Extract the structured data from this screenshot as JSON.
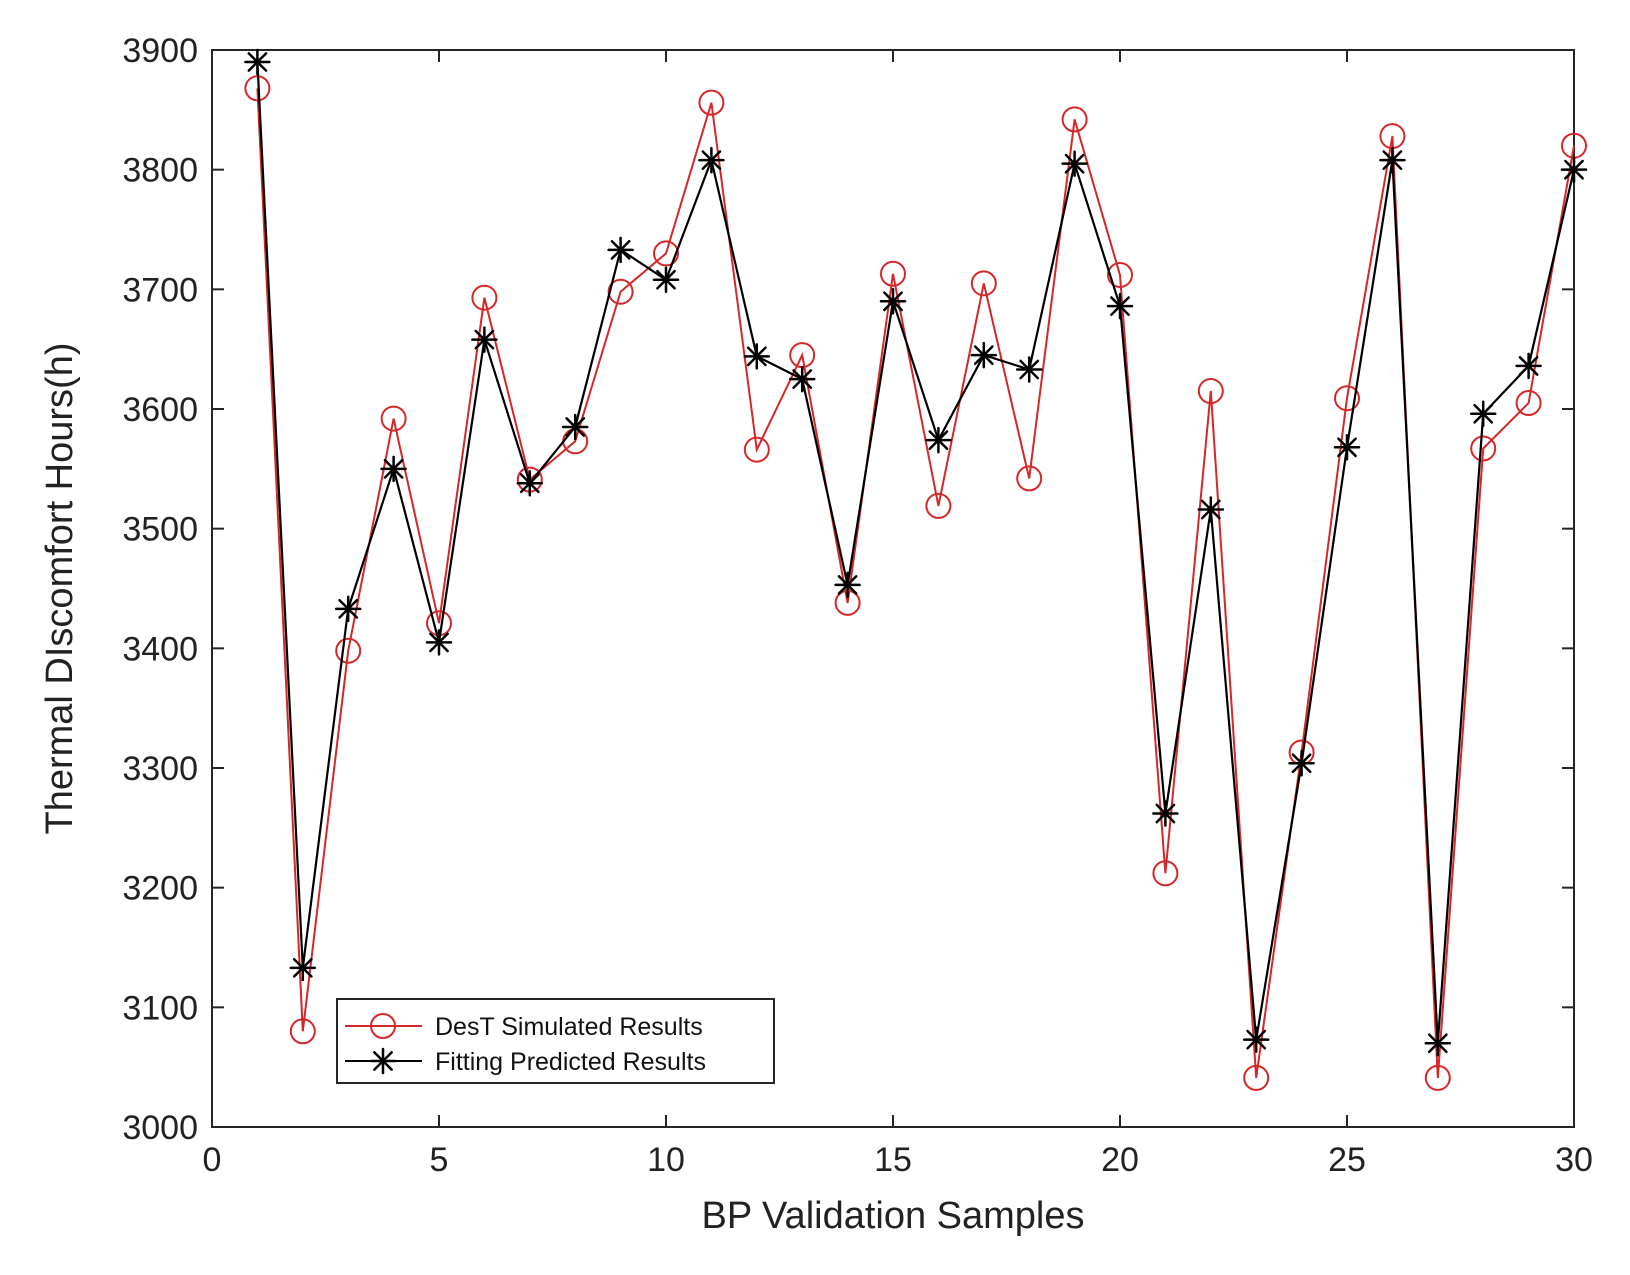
{
  "chart_data": {
    "type": "line",
    "title": "",
    "xlabel": "BP Validation Samples",
    "ylabel": "Thermal DIscomfort Hours(h)",
    "xlim": [
      0,
      30
    ],
    "ylim": [
      3000,
      3900
    ],
    "xticks": [
      0,
      5,
      10,
      15,
      20,
      25,
      30
    ],
    "yticks": [
      3000,
      3100,
      3200,
      3300,
      3400,
      3500,
      3600,
      3700,
      3800,
      3900
    ],
    "grid": false,
    "legend_position": "bottom-left",
    "x": [
      1,
      2,
      3,
      4,
      5,
      6,
      7,
      8,
      9,
      10,
      11,
      12,
      13,
      14,
      15,
      16,
      17,
      18,
      19,
      20,
      21,
      22,
      23,
      24,
      25,
      26,
      27,
      28,
      29,
      30
    ],
    "series": [
      {
        "name": "DesT Simulated Results",
        "color": "#d62728",
        "marker": "circle",
        "values": [
          3868,
          3080,
          3398,
          3592,
          3421,
          3693,
          3541,
          3573,
          3698,
          3730,
          3856,
          3566,
          3645,
          3438,
          3713,
          3519,
          3705,
          3542,
          3842,
          3712,
          3212,
          3615,
          3041,
          3313,
          3609,
          3828,
          3041,
          3567,
          3605,
          3820
        ]
      },
      {
        "name": "Fitting Predicted Results",
        "color": "#000000",
        "marker": "asterisk",
        "values": [
          3890,
          3133,
          3433,
          3550,
          3405,
          3658,
          3538,
          3585,
          3733,
          3708,
          3808,
          3644,
          3625,
          3453,
          3690,
          3574,
          3645,
          3633,
          3805,
          3686,
          3262,
          3516,
          3073,
          3304,
          3568,
          3808,
          3070,
          3596,
          3636,
          3800
        ]
      }
    ]
  }
}
